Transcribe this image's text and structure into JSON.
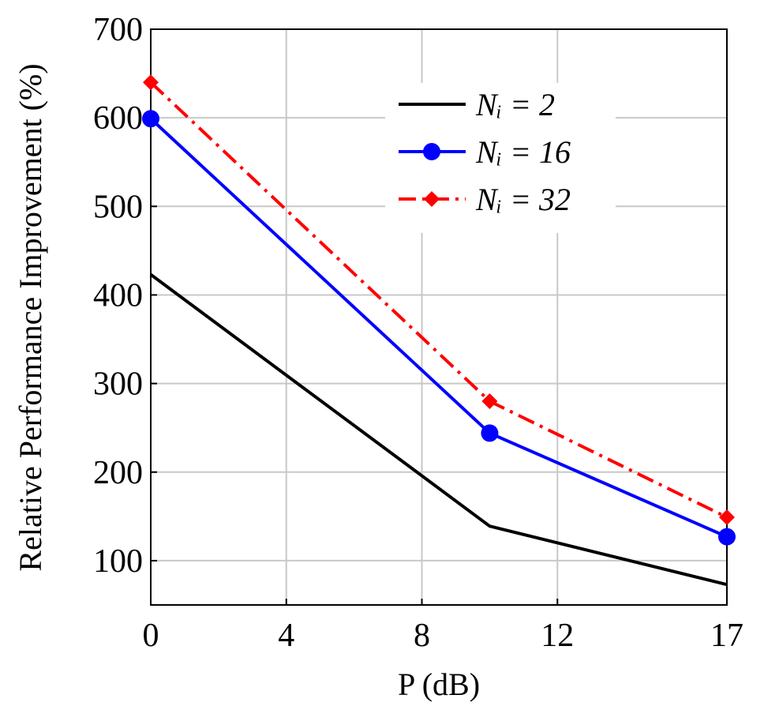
{
  "chart_data": {
    "type": "line",
    "x_label": "P (dB)",
    "y_label": "Relative Performance Improvement (%)",
    "xlim": [
      0,
      17
    ],
    "xticks": [
      0,
      4,
      8,
      12,
      17
    ],
    "ylim": [
      50,
      700
    ],
    "yticks": [
      100,
      200,
      300,
      400,
      500,
      600,
      700
    ],
    "grid": true,
    "legend": "upper right",
    "series": [
      {
        "name": "Nᵢ = 2",
        "color": "#000000",
        "style": "solid",
        "marker": "none",
        "x": [
          0,
          10,
          17
        ],
        "values": [
          423,
          139,
          73
        ]
      },
      {
        "name": "Nᵢ = 16",
        "color": "#0000ff",
        "style": "solid",
        "marker": "circle",
        "x": [
          0,
          10,
          17
        ],
        "values": [
          599,
          244,
          127
        ]
      },
      {
        "name": "Nᵢ = 32",
        "color": "#ff0000",
        "style": "dashdot",
        "marker": "diamond",
        "x": [
          0,
          10,
          17
        ],
        "values": [
          640,
          280,
          149
        ]
      }
    ]
  }
}
